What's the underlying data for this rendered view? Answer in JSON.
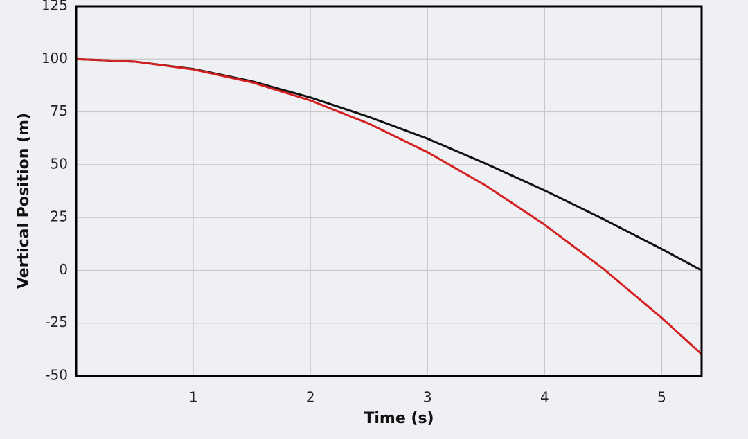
{
  "chart_data": {
    "type": "line",
    "x_label": "Time (s)",
    "y_label": "Vertical Position (m)",
    "x": [
      0,
      0.5,
      1,
      1.5,
      2,
      2.5,
      3,
      3.5,
      4,
      4.5,
      5,
      5.34
    ],
    "series": [
      {
        "color": "#111111",
        "values": [
          100,
          98.8,
          95.3,
          89.5,
          81.8,
          72.6,
          62.3,
          50.4,
          37.8,
          24.3,
          10.1,
          0
        ]
      },
      {
        "color": "#d42020",
        "values": [
          100,
          98.8,
          95.1,
          89.0,
          80.4,
          69.4,
          55.9,
          40.0,
          21.6,
          0.8,
          -22.5,
          -39.7
        ]
      }
    ],
    "xlim": [
      0,
      5.34
    ],
    "xticks": [
      1,
      2,
      3,
      4,
      5
    ],
    "ylim": [
      -50,
      125
    ],
    "yticks": [
      -50,
      -25,
      0,
      25,
      50,
      75,
      100,
      125
    ],
    "grid": true
  }
}
